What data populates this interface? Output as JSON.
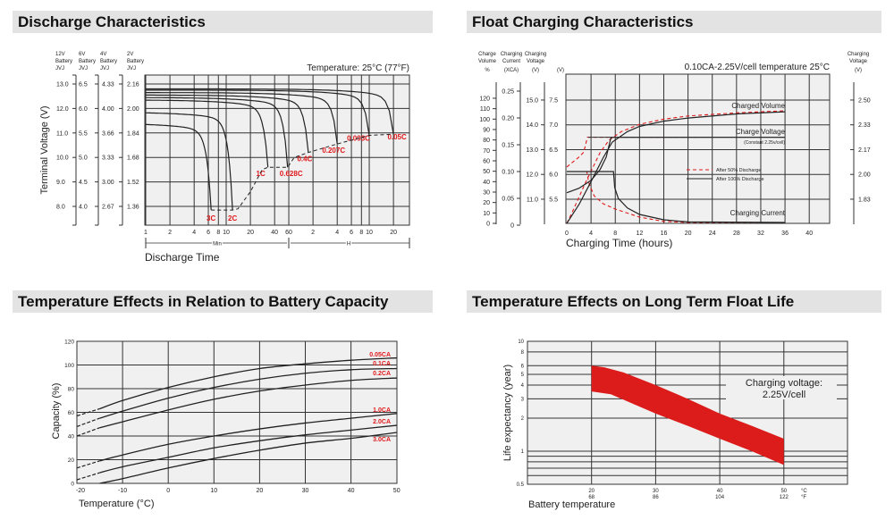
{
  "headers": {
    "discharge": "Discharge Characteristics",
    "float": "Float Charging Characteristics",
    "capacity": "Temperature Effects in Relation to Battery Capacity",
    "life": "Temperature Effects on Long Term Float Life"
  },
  "chart_data": [
    {
      "type": "line",
      "title": "Discharge Characteristics",
      "annotation": "Temperature: 25°C (77°F)",
      "xlabel": "Discharge Time",
      "ylabel": "Terminal Voltage (V)",
      "x_scale": "log",
      "x_unit_note": "minutes (1-60 Min), then hours (H)",
      "x_ticks": [
        "1",
        "2",
        "4",
        "6",
        "8",
        "10",
        "20",
        "40",
        "60",
        "2",
        "4",
        "6",
        "8",
        "10",
        "20"
      ],
      "x_range_labels": [
        "Min",
        "H"
      ],
      "y_axes": [
        {
          "header": [
            "12V",
            "Battery",
            "JVJ"
          ],
          "ticks": [
            "13.0",
            "12.0",
            "11.0",
            "10.0",
            "9.0",
            "8.0"
          ]
        },
        {
          "header": [
            "6V",
            "Battery",
            "JVJ"
          ],
          "ticks": [
            "6.5",
            "6.0",
            "5.5",
            "5.0",
            "4.5",
            "4.0"
          ]
        },
        {
          "header": [
            "4V",
            "Battery",
            "JVJ"
          ],
          "ticks": [
            "4.33",
            "4.00",
            "3.66",
            "3.33",
            "3.00",
            "2.67"
          ]
        },
        {
          "header": [
            "2V",
            "Battery",
            "JVJ"
          ],
          "ticks": [
            "2.16",
            "2.00",
            "1.84",
            "1.68",
            "1.52",
            "1.36"
          ]
        }
      ],
      "grid": true,
      "series": [
        {
          "name": "3C",
          "start_v": 11.4,
          "end_min": 6.5,
          "end_v": 7.85
        },
        {
          "name": "2C",
          "start_v": 11.85,
          "end_min": 12,
          "end_v": 7.85
        },
        {
          "name": "1C",
          "start_v": 12.35,
          "end_min": 33,
          "end_v": 9.6
        },
        {
          "name": "0.628C",
          "start_v": 12.45,
          "end_min": 58,
          "end_v": 9.6
        },
        {
          "name": "0.4C",
          "start_v": 12.55,
          "end_min": 105,
          "end_v": 10.2
        },
        {
          "name": "0.207C",
          "start_v": 12.65,
          "end_min": 240,
          "end_v": 10.55
        },
        {
          "name": "0.093C",
          "start_v": 12.75,
          "end_min": 600,
          "end_v": 10.9
        },
        {
          "name": "0.05C",
          "start_v": 12.8,
          "end_min": 1200,
          "end_v": 10.95
        }
      ],
      "cutoff_line": [
        [
          6.5,
          7.85
        ],
        [
          12,
          7.85
        ],
        [
          14,
          7.9
        ],
        [
          20,
          8.6
        ],
        [
          28,
          9.5
        ],
        [
          33,
          9.6
        ],
        [
          58,
          9.6
        ],
        [
          70,
          10.0
        ],
        [
          105,
          10.2
        ],
        [
          240,
          10.55
        ],
        [
          600,
          10.9
        ],
        [
          1200,
          10.95
        ]
      ],
      "label_color": "#e0191b"
    },
    {
      "type": "line",
      "title": "Float Charging Characteristics",
      "annotation": "0.10CA-2.25V/cell  temperature 25°C",
      "xlabel": "Charging Time (hours)",
      "x_ticks": [
        0,
        4,
        8,
        12,
        16,
        20,
        24,
        28,
        32,
        36,
        40
      ],
      "y_axes": [
        {
          "header": [
            "Charge",
            "Volume",
            "%"
          ],
          "ticks": [
            "0",
            "10",
            "20",
            "30",
            "40",
            "50",
            "60",
            "70",
            "80",
            "90",
            "100",
            "110",
            "120"
          ]
        },
        {
          "header": [
            "Charging",
            "Current",
            "(XCA)"
          ],
          "ticks": [
            "0",
            "0.05",
            "0.10",
            "0.15",
            "0.20",
            "0.25"
          ]
        },
        {
          "header": [
            "Charging",
            "Voltage",
            "(V)"
          ],
          "ticks": [
            "11.0",
            "12.0",
            "13.0",
            "14.0",
            "15.0"
          ]
        },
        {
          "header": [
            "(V)"
          ],
          "ticks": [
            "5.5",
            "6.0",
            "6.5",
            "7.0",
            "7.5"
          ]
        },
        {
          "header": [
            "Charging",
            "Voltage",
            "(V)"
          ],
          "ticks": [
            "1.83",
            "2.00",
            "2.17",
            "2.33",
            "2.50"
          ],
          "side": "right"
        }
      ],
      "curve_labels": {
        "volume": "Charged Volume",
        "voltage": "Charge Voltage",
        "voltage_note": "(Constant 2.25v/cell)",
        "current": "Charging Current"
      },
      "legend": [
        {
          "name": "After  50% Discharge",
          "style": "dashed",
          "color": "#e0191b"
        },
        {
          "name": "After 100% Discharge",
          "style": "solid",
          "color": "#222222"
        }
      ],
      "grid": true,
      "series": [
        {
          "name": "After 50% Discharge",
          "quantity": "voltage_V",
          "points": [
            [
              0,
              6.15
            ],
            [
              1,
              6.25
            ],
            [
              2,
              6.35
            ],
            [
              2.8,
              6.45
            ],
            [
              3.1,
              6.6
            ],
            [
              3.4,
              6.75
            ],
            [
              22,
              6.75
            ]
          ]
        },
        {
          "name": "After 50% Discharge",
          "quantity": "volume_pct",
          "points": [
            [
              0,
              0
            ],
            [
              1,
              12
            ],
            [
              2,
              25
            ],
            [
              3,
              38
            ],
            [
              4,
              50
            ],
            [
              5.5,
              68
            ],
            [
              7,
              80
            ],
            [
              9,
              88
            ],
            [
              12,
              95
            ],
            [
              16,
              100
            ],
            [
              20,
              103
            ],
            [
              28,
              106
            ],
            [
              36,
              108
            ]
          ]
        },
        {
          "name": "After 50% Discharge",
          "quantity": "current_CA",
          "points": [
            [
              0,
              0.1
            ],
            [
              3.3,
              0.1
            ],
            [
              3.6,
              0.08
            ],
            [
              4.5,
              0.055
            ],
            [
              6,
              0.04
            ],
            [
              8,
              0.03
            ],
            [
              12,
              0.015
            ],
            [
              16,
              0.007
            ],
            [
              20,
              0.005
            ],
            [
              36,
              0.005
            ]
          ]
        },
        {
          "name": "After 100% Discharge",
          "quantity": "voltage_V",
          "points": [
            [
              0,
              5.63
            ],
            [
              2,
              5.72
            ],
            [
              4,
              5.88
            ],
            [
              5.5,
              6.1
            ],
            [
              6.5,
              6.35
            ],
            [
              7.3,
              6.75
            ],
            [
              36,
              6.75
            ]
          ]
        },
        {
          "name": "After 100% Discharge",
          "quantity": "volume_pct",
          "points": [
            [
              0,
              0
            ],
            [
              2,
              18
            ],
            [
              4,
              40
            ],
            [
              6,
              63
            ],
            [
              7.5,
              78
            ],
            [
              10,
              88
            ],
            [
              12,
              93
            ],
            [
              16,
              98
            ],
            [
              20,
              101
            ],
            [
              28,
              105
            ],
            [
              36,
              107
            ]
          ]
        },
        {
          "name": "After 100% Discharge",
          "quantity": "current_CA",
          "points": [
            [
              0,
              0.1
            ],
            [
              7.7,
              0.1
            ],
            [
              7.9,
              0.07
            ],
            [
              8.5,
              0.05
            ],
            [
              10,
              0.032
            ],
            [
              12,
              0.02
            ],
            [
              16,
              0.01
            ],
            [
              20,
              0.006
            ],
            [
              36,
              0.005
            ]
          ]
        }
      ]
    },
    {
      "type": "line",
      "title": "Temperature Effects in Relation to Battery Capacity",
      "xlabel": "Temperature (°C)",
      "ylabel": "Capacity (%)",
      "xlim": [
        -20,
        50
      ],
      "ylim": [
        0,
        120
      ],
      "x_ticks": [
        "-20",
        "-10",
        "0",
        "10",
        "20",
        "30",
        "40",
        "50"
      ],
      "y_ticks": [
        "0",
        "20",
        "40",
        "60",
        "80",
        "100",
        "120"
      ],
      "grid": true,
      "label_color": "#e0191b",
      "series": [
        {
          "name": "0.05CA",
          "x": [
            -20,
            -15,
            -10,
            0,
            10,
            20,
            30,
            40,
            50
          ],
          "y": [
            57,
            63,
            70,
            81,
            90,
            97,
            101,
            104,
            106
          ]
        },
        {
          "name": "0.1CA",
          "x": [
            -20,
            -15,
            -10,
            0,
            10,
            20,
            30,
            40,
            50
          ],
          "y": [
            48,
            55,
            61,
            72,
            81,
            88,
            93,
            96,
            97
          ]
        },
        {
          "name": "0.2CA",
          "x": [
            -20,
            -15,
            -10,
            0,
            10,
            20,
            30,
            40,
            50
          ],
          "y": [
            40,
            47,
            52,
            62,
            71,
            78,
            83,
            87,
            89
          ]
        },
        {
          "name": "1.0CA",
          "x": [
            -20,
            -15,
            -10,
            0,
            10,
            20,
            30,
            40,
            50
          ],
          "y": [
            13,
            19,
            24,
            33,
            40,
            46,
            51,
            55,
            59
          ]
        },
        {
          "name": "2.0CA",
          "x": [
            -20,
            -15,
            -10,
            0,
            10,
            20,
            30,
            40,
            50
          ],
          "y": [
            3,
            9,
            14,
            22,
            30,
            36,
            41,
            45,
            49
          ]
        },
        {
          "name": "3.0CA",
          "x": [
            -15,
            -10,
            0,
            10,
            20,
            30,
            40,
            50
          ],
          "y": [
            0,
            4,
            13,
            21,
            28,
            34,
            38,
            43
          ]
        }
      ],
      "dashed_below_x": -15
    },
    {
      "type": "area",
      "title": "Temperature Effects on Long Term Float Life",
      "xlabel": "Battery temperature",
      "ylabel": "Life expectancy (year)",
      "y_scale": "log",
      "ylim": [
        0.5,
        10
      ],
      "xlim": [
        10,
        60
      ],
      "x_ticks": [
        {
          "c": "20",
          "f": "68"
        },
        {
          "c": "30",
          "f": "86"
        },
        {
          "c": "40",
          "f": "104"
        },
        {
          "c": "50",
          "f": "122"
        }
      ],
      "x_unit_labels": {
        "c": "°C",
        "f": "°F"
      },
      "y_ticks": [
        "10",
        "8",
        "6",
        "5",
        "4",
        "3",
        "2",
        "1",
        "0.5"
      ],
      "annotation": [
        "Charging voltage:",
        "2.25V/cell"
      ],
      "band_color": "#dc1b1b",
      "upper": {
        "x": [
          20,
          22,
          25,
          30,
          35,
          40,
          45,
          50
        ],
        "y": [
          6.0,
          5.8,
          5.2,
          4.0,
          3.0,
          2.2,
          1.7,
          1.3
        ]
      },
      "lower": {
        "x": [
          20,
          23,
          30,
          35,
          40,
          45,
          50
        ],
        "y": [
          3.5,
          3.3,
          2.2,
          1.7,
          1.3,
          1.0,
          0.75
        ]
      }
    }
  ]
}
